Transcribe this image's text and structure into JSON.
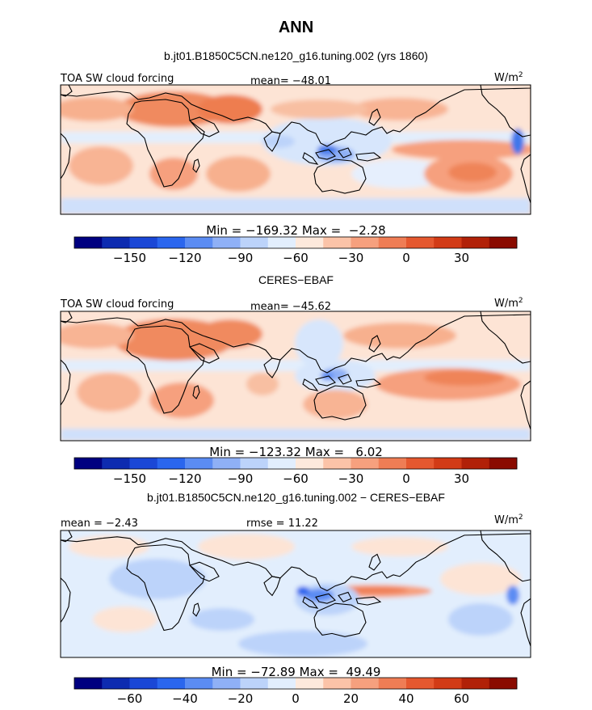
{
  "page": {
    "title": "ANN"
  },
  "chart_data": [
    {
      "type": "heatmap",
      "subtitle": "b.jt01.B1850C5CN.ne120_g16.tuning.002 (yrs 1860)",
      "left_label": "TOA SW cloud forcing",
      "center_label": "mean= -48.01",
      "units_label": "W/m",
      "units_superscript": "2",
      "minmax_label": "Min = -169.32 Max =  -2.28",
      "colorbar": {
        "colors": [
          "#000080",
          "#0d2bb0",
          "#1a47d6",
          "#2a66ee",
          "#5b8cf3",
          "#8fb0f6",
          "#bcd3fa",
          "#e2eefd",
          "#fde9dc",
          "#fbc3a8",
          "#f6a07e",
          "#ef7d55",
          "#e5582f",
          "#d23b16",
          "#b12108",
          "#8a0b00"
        ],
        "tick_labels": [
          "-150",
          "-120",
          "-90",
          "-60",
          "-30",
          "0",
          "30"
        ]
      }
    },
    {
      "type": "heatmap",
      "subtitle": "CERES-EBAF",
      "left_label": "TOA SW cloud forcing",
      "center_label": "mean= -45.62",
      "units_label": "W/m",
      "units_superscript": "2",
      "minmax_label": "Min = -123.32 Max =   6.02",
      "colorbar": {
        "colors": [
          "#000080",
          "#0d2bb0",
          "#1a47d6",
          "#2a66ee",
          "#5b8cf3",
          "#8fb0f6",
          "#bcd3fa",
          "#e2eefd",
          "#fde9dc",
          "#fbc3a8",
          "#f6a07e",
          "#ef7d55",
          "#e5582f",
          "#d23b16",
          "#b12108",
          "#8a0b00"
        ],
        "tick_labels": [
          "-150",
          "-120",
          "-90",
          "-60",
          "-30",
          "0",
          "30"
        ]
      }
    },
    {
      "type": "heatmap",
      "subtitle": "b.jt01.B1850C5CN.ne120_g16.tuning.002 - CERES-EBAF",
      "left_label": "mean = -2.43",
      "center_label": "rmse = 11.22",
      "units_label": "W/m",
      "units_superscript": "2",
      "minmax_label": "Min = -72.89 Max =  49.49",
      "colorbar": {
        "colors": [
          "#000080",
          "#0d2bb0",
          "#1a47d6",
          "#2a66ee",
          "#5b8cf3",
          "#8fb0f6",
          "#bcd3fa",
          "#e2eefd",
          "#fde9dc",
          "#fbc3a8",
          "#f6a07e",
          "#ef7d55",
          "#e5582f",
          "#d23b16",
          "#b12108",
          "#8a0b00"
        ],
        "tick_labels": [
          "-60",
          "-40",
          "-20",
          "0",
          "20",
          "40",
          "60"
        ]
      }
    }
  ]
}
